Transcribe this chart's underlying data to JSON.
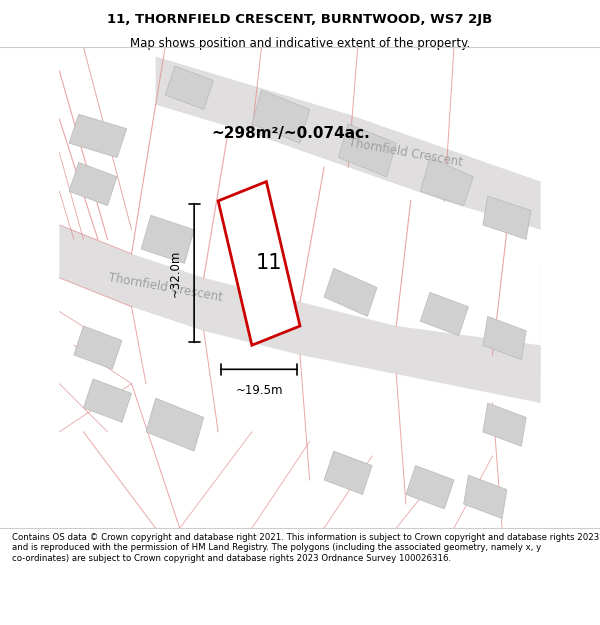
{
  "title": "11, THORNFIELD CRESCENT, BURNTWOOD, WS7 2JB",
  "subtitle": "Map shows position and indicative extent of the property.",
  "footer": "Contains OS data © Crown copyright and database right 2021. This information is subject to Crown copyright and database rights 2023 and is reproduced with the permission of HM Land Registry. The polygons (including the associated geometry, namely x, y co-ordinates) are subject to Crown copyright and database rights 2023 Ordnance Survey 100026316.",
  "area_label": "~298m²/~0.074ac.",
  "plot_number": "11",
  "dim_height": "~32.0m",
  "dim_width": "~19.5m",
  "road_label_lower": "Thornfield Crescent",
  "road_label_upper": "Thornfield Crescent",
  "bg_color": "#f5f0f0",
  "map_bg": "#f5f0f0",
  "plot_fill": "#ffffff",
  "plot_edge": "#cc0000",
  "road_fill": "#e8e8e8",
  "building_fill": "#d8d8d8",
  "street_line_color": "#e08080",
  "road_stripe_color": "#c8c8c8"
}
